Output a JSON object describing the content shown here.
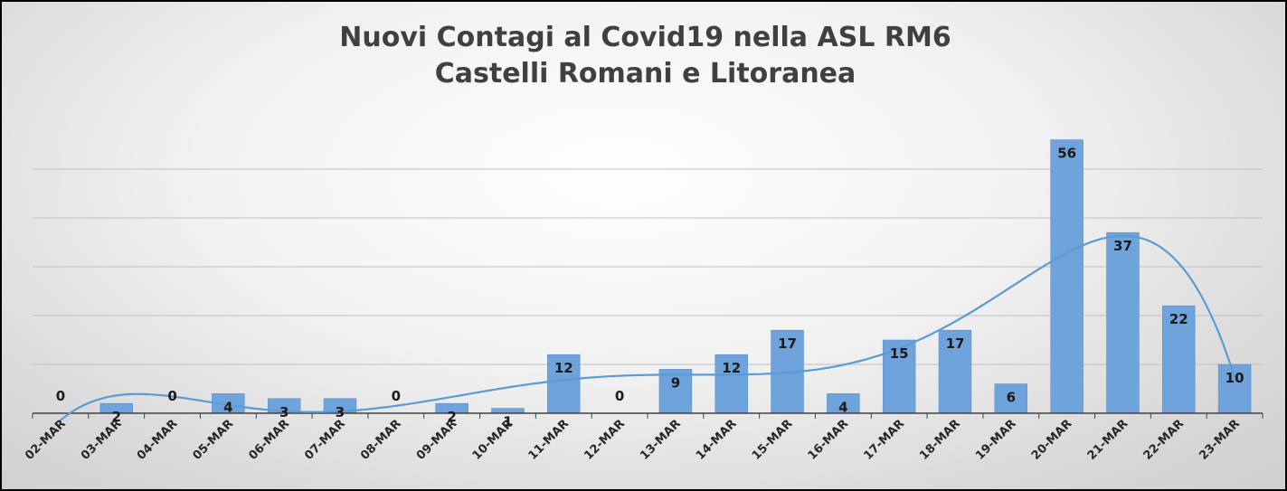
{
  "chart_data": {
    "type": "bar",
    "title": "Nuovi Contagi al Covid19 nella ASL RM6",
    "subtitle": "Castelli Romani e Litoranea",
    "categories": [
      "02-MAR",
      "03-MAR",
      "04-MAR",
      "05-MAR",
      "06-MAR",
      "07-MAR",
      "08-MAR",
      "09-MAR",
      "10-MAR",
      "11-MAR",
      "12-MAR",
      "13-MAR",
      "14-MAR",
      "15-MAR",
      "16-MAR",
      "17-MAR",
      "18-MAR",
      "19-MAR",
      "20-MAR",
      "21-MAR",
      "22-MAR",
      "23-MAR"
    ],
    "series": [
      {
        "values": [
          0,
          2,
          0,
          4,
          3,
          3,
          0,
          2,
          1,
          12,
          0,
          9,
          12,
          17,
          4,
          15,
          17,
          6,
          56,
          37,
          22,
          10
        ]
      }
    ],
    "trendline": "polynomial",
    "ylim": [
      0,
      60
    ],
    "grid": true,
    "legend": "none",
    "colors": {
      "bar": "#6fa3dc",
      "bar_edge": "#5b8fc9",
      "trend": "#5b9bd5",
      "grid": "#bfbfbf",
      "axis": "#404040"
    }
  }
}
